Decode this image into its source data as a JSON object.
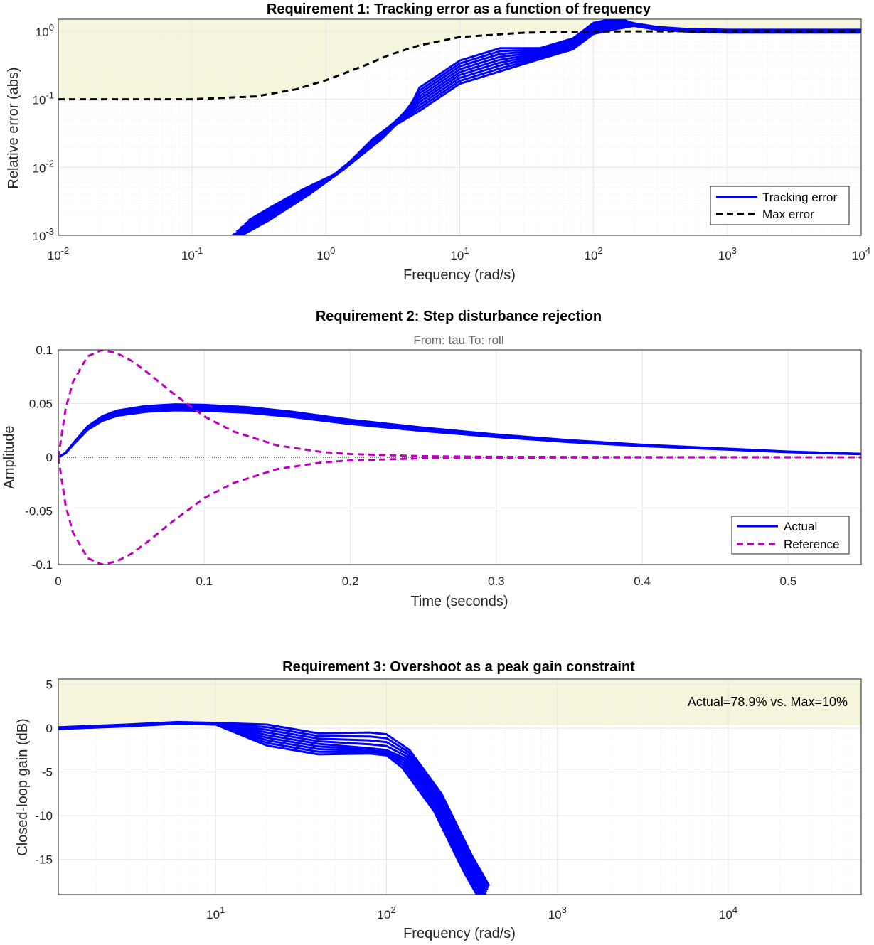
{
  "colors": {
    "tracking": "#0000ff",
    "maxerr": "#000000",
    "reference": "#bf00bf",
    "violation": "#f5f5dc",
    "grid": "#e6e6e6"
  },
  "chart_data": [
    {
      "type": "line",
      "title": "Requirement 1: Tracking error as a function of frequency",
      "xlabel": "Frequency (rad/s)",
      "ylabel": "Relative error (abs)",
      "xscale": "log",
      "yscale": "log",
      "xlim": [
        0.01,
        10000
      ],
      "ylim": [
        0.001,
        1.5
      ],
      "xticks": [
        {
          "value": 0.01,
          "base": "10",
          "exp": "-2"
        },
        {
          "value": 0.1,
          "base": "10",
          "exp": "-1"
        },
        {
          "value": 1,
          "base": "10",
          "exp": "0"
        },
        {
          "value": 10,
          "base": "10",
          "exp": "1"
        },
        {
          "value": 100,
          "base": "10",
          "exp": "2"
        },
        {
          "value": 1000,
          "base": "10",
          "exp": "3"
        },
        {
          "value": 10000,
          "base": "10",
          "exp": "4"
        }
      ],
      "yticks": [
        {
          "value": 0.001,
          "base": "10",
          "exp": "-3"
        },
        {
          "value": 0.01,
          "base": "10",
          "exp": "-2"
        },
        {
          "value": 0.1,
          "base": "10",
          "exp": "-1"
        },
        {
          "value": 1,
          "base": "10",
          "exp": "0"
        }
      ],
      "grid": true,
      "legend_position": "bottom-right",
      "legend": [
        "Tracking error",
        "Max error"
      ],
      "series": [
        {
          "name": "Tracking error",
          "style": "solid",
          "color": "#0000ff",
          "x": [
            0.2,
            0.3,
            0.5,
            1,
            2,
            3,
            5,
            10,
            20,
            40,
            70,
            100,
            150,
            200,
            300,
            500,
            1000,
            3000,
            10000
          ],
          "y": [
            0.001,
            0.0016,
            0.0028,
            0.006,
            0.018,
            0.04,
            0.1,
            0.25,
            0.38,
            0.47,
            0.65,
            1.1,
            1.3,
            1.25,
            1.1,
            1.03,
            1.0,
            1.0,
            1.0
          ]
        },
        {
          "name": "Max error",
          "style": "dashed",
          "color": "#000000",
          "x": [
            0.01,
            0.1,
            0.3,
            0.6,
            1,
            2,
            3,
            5,
            10,
            30,
            100,
            1000,
            10000
          ],
          "y": [
            0.1,
            0.1,
            0.11,
            0.14,
            0.19,
            0.32,
            0.45,
            0.62,
            0.82,
            0.95,
            0.99,
            1.0,
            1.0
          ]
        }
      ],
      "band_count": 9
    },
    {
      "type": "line",
      "title": "Requirement 2: Step disturbance rejection",
      "subtitle": "From: tau  To: roll",
      "xlabel": "Time (seconds)",
      "ylabel": "Amplitude",
      "xlim": [
        0,
        0.55
      ],
      "ylim": [
        -0.1,
        0.1
      ],
      "xticks": [
        "0",
        "0.1",
        "0.2",
        "0.3",
        "0.4",
        "0.5"
      ],
      "xtick_values": [
        0,
        0.1,
        0.2,
        0.3,
        0.4,
        0.5
      ],
      "yticks": [
        "-0.1",
        "-0.05",
        "0",
        "0.05",
        "0.1"
      ],
      "ytick_values": [
        -0.1,
        -0.05,
        0,
        0.05,
        0.1
      ],
      "grid": true,
      "legend_position": "bottom-right",
      "legend": [
        "Actual",
        "Reference"
      ],
      "series": [
        {
          "name": "Actual",
          "style": "solid",
          "color": "#0000ff",
          "x": [
            0,
            0.005,
            0.01,
            0.02,
            0.03,
            0.04,
            0.06,
            0.08,
            0.1,
            0.13,
            0.16,
            0.2,
            0.25,
            0.3,
            0.35,
            0.4,
            0.45,
            0.5,
            0.55
          ],
          "y": [
            0,
            0.004,
            0.012,
            0.027,
            0.036,
            0.041,
            0.045,
            0.0465,
            0.046,
            0.044,
            0.04,
            0.033,
            0.026,
            0.02,
            0.015,
            0.011,
            0.008,
            0.005,
            0.003
          ]
        },
        {
          "name": "Reference",
          "style": "dashed",
          "color": "#bf00bf",
          "x": [
            0,
            0.005,
            0.01,
            0.02,
            0.03,
            0.04,
            0.05,
            0.06,
            0.08,
            0.1,
            0.12,
            0.15,
            0.18,
            0.2,
            0.25,
            0.3,
            0.4,
            0.55
          ],
          "y": [
            0,
            0.045,
            0.07,
            0.094,
            0.1,
            0.097,
            0.09,
            0.08,
            0.058,
            0.038,
            0.024,
            0.011,
            0.005,
            0.003,
            0.001,
            0.0004,
            0.0001,
            0
          ]
        },
        {
          "name": "Reference",
          "style": "dashed",
          "color": "#bf00bf",
          "mirror": true,
          "x": [
            0,
            0.005,
            0.01,
            0.02,
            0.03,
            0.04,
            0.05,
            0.06,
            0.08,
            0.1,
            0.12,
            0.15,
            0.18,
            0.2,
            0.25,
            0.3,
            0.4,
            0.55
          ],
          "y": [
            0,
            -0.045,
            -0.07,
            -0.094,
            -0.1,
            -0.097,
            -0.09,
            -0.08,
            -0.058,
            -0.038,
            -0.024,
            -0.011,
            -0.005,
            -0.003,
            -0.001,
            -0.0004,
            -0.0001,
            0
          ]
        }
      ]
    },
    {
      "type": "line",
      "title": "Requirement 3: Overshoot as a peak gain constraint",
      "xlabel": "Frequency (rad/s)",
      "ylabel": "Closed-loop gain (dB)",
      "xscale": "log",
      "xlim": [
        1.2,
        60000
      ],
      "ylim": [
        -19,
        5.6
      ],
      "xticks": [
        {
          "value": 10,
          "base": "10",
          "exp": "1"
        },
        {
          "value": 100,
          "base": "10",
          "exp": "2"
        },
        {
          "value": 1000,
          "base": "10",
          "exp": "3"
        },
        {
          "value": 10000,
          "base": "10",
          "exp": "4"
        }
      ],
      "yticks": [
        "-15",
        "-10",
        "-5",
        "0",
        "5"
      ],
      "ytick_values": [
        -15,
        -10,
        -5,
        0,
        5
      ],
      "grid": true,
      "annotation": "Actual=78.9% vs. Max=10%",
      "violation_above": 0.35,
      "series": [
        {
          "name": "",
          "style": "solid",
          "color": "#0000ff",
          "x": [
            1.2,
            3,
            6,
            10,
            20,
            40,
            80,
            100,
            130,
            200,
            300,
            380
          ],
          "y": [
            0,
            0.3,
            0.6,
            0.5,
            -0.8,
            -1.8,
            -2.3,
            -2.5,
            -3.5,
            -8.5,
            -15.5,
            -19
          ]
        }
      ],
      "band_count": 9
    }
  ]
}
